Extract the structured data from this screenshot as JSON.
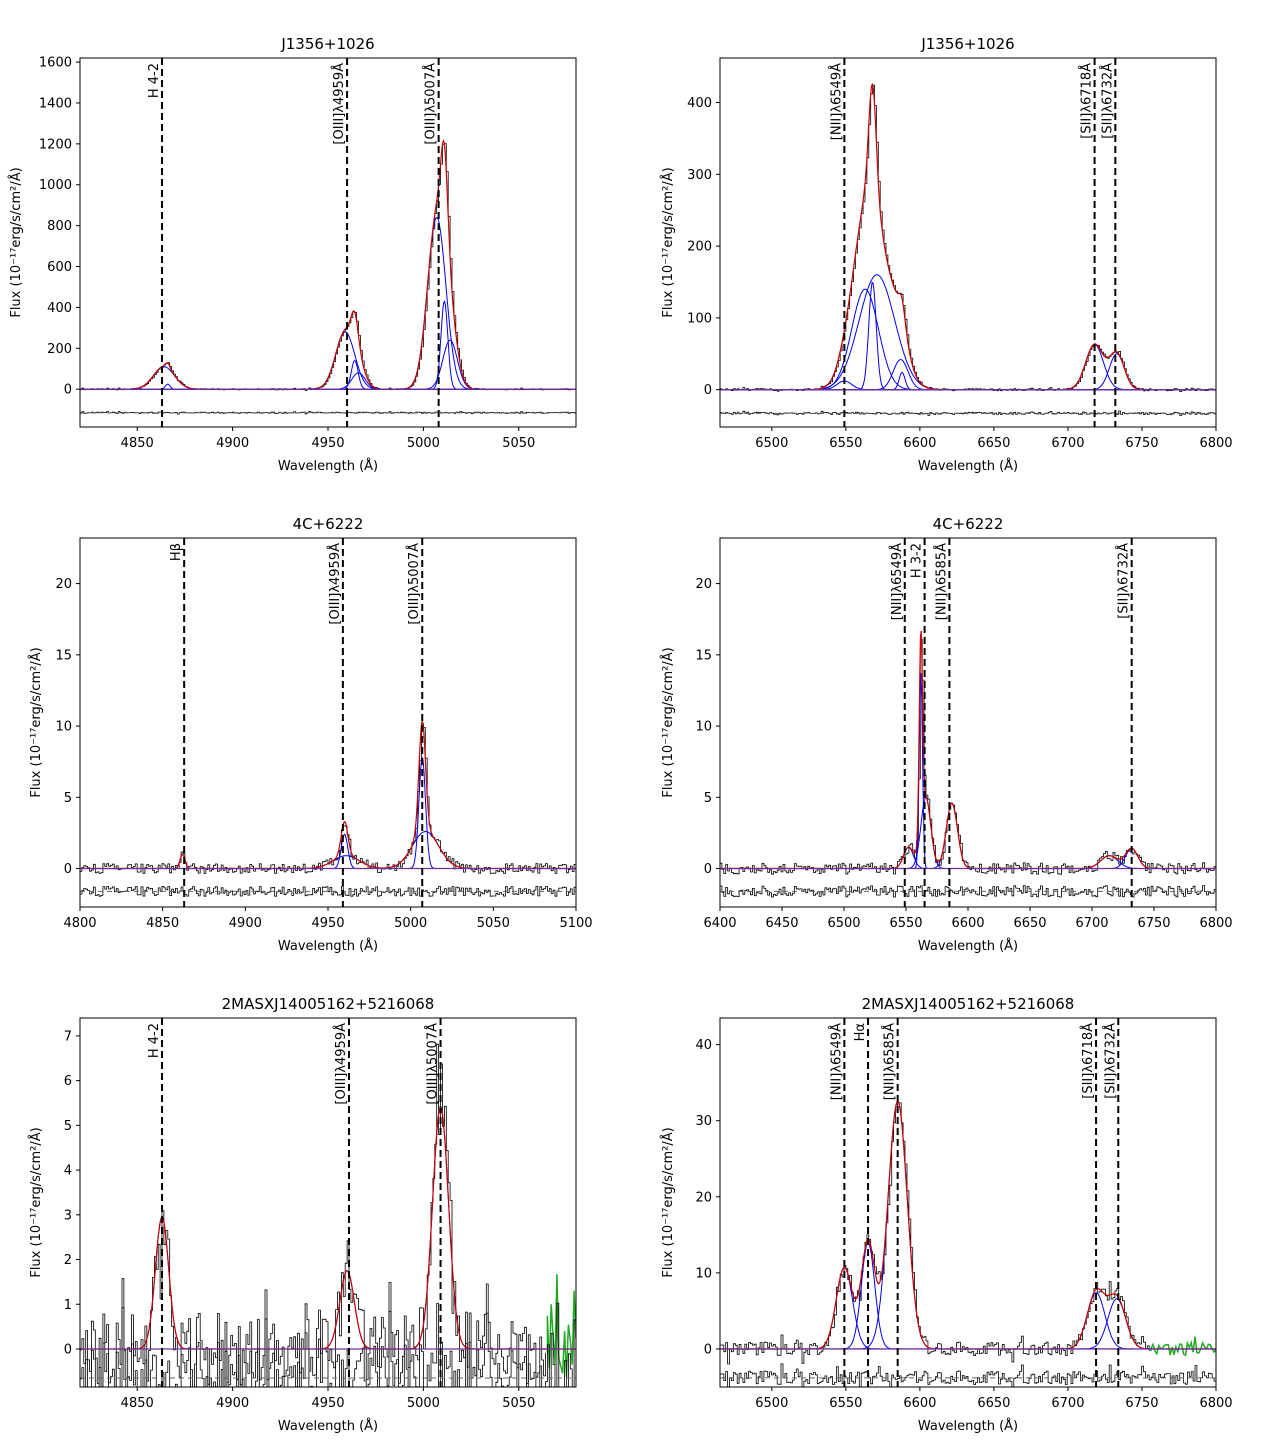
{
  "figure": {
    "description_free": true
  },
  "chart_data": [
    {
      "type": "line",
      "title": "J1356+1026",
      "xlabel": "Wavelength (Å)",
      "ylabel": "Flux (10⁻¹⁷erg/s/cm²/Å)",
      "xlim": [
        4820,
        5080
      ],
      "ylim": [
        -185,
        1620
      ],
      "xticks": [
        4850,
        4900,
        4950,
        5000,
        5050
      ],
      "yticks": [
        0,
        200,
        400,
        600,
        800,
        1000,
        1200,
        1400,
        1600
      ],
      "baseline": 0,
      "residual_offset": -115,
      "noise": 3,
      "marker_lines": [
        {
          "x": 4863,
          "label": "H 4-2"
        },
        {
          "x": 4960,
          "label": "[OIII]λ4959Å"
        },
        {
          "x": 5008,
          "label": "[OIII]λ5007Å"
        }
      ],
      "components": [
        {
          "center": 4864,
          "amplitude": 110,
          "sigma": 5.5
        },
        {
          "center": 4866,
          "amplitude": 25,
          "sigma": 1.2
        },
        {
          "center": 4959,
          "amplitude": 280,
          "sigma": 5.0
        },
        {
          "center": 4964,
          "amplitude": 140,
          "sigma": 1.8
        },
        {
          "center": 4966,
          "amplitude": 80,
          "sigma": 3.5
        },
        {
          "center": 5007,
          "amplitude": 840,
          "sigma": 4.8
        },
        {
          "center": 5011,
          "amplitude": 430,
          "sigma": 1.8
        },
        {
          "center": 5014,
          "amplitude": 240,
          "sigma": 3.8
        }
      ]
    },
    {
      "type": "line",
      "title": "J1356+1026",
      "xlabel": "Wavelength (Å)",
      "ylabel": "Flux (10⁻¹⁷erg/s/cm²/Å)",
      "xlim": [
        6465,
        6800
      ],
      "ylim": [
        -52,
        462
      ],
      "xticks": [
        6500,
        6550,
        6600,
        6650,
        6700,
        6750,
        6800
      ],
      "yticks": [
        0,
        100,
        200,
        300,
        400
      ],
      "baseline": 0,
      "residual_offset": -33,
      "noise": 1.5,
      "marker_lines": [
        {
          "x": 6549,
          "label": "[NII]λ6549Å"
        },
        {
          "x": 6718,
          "label": "[SII]λ6718Å"
        },
        {
          "x": 6732,
          "label": "[SII]λ6732Å"
        }
      ],
      "components": [
        {
          "center": 6549,
          "amplitude": 12,
          "sigma": 5
        },
        {
          "center": 6563,
          "amplitude": 140,
          "sigma": 9
        },
        {
          "center": 6568,
          "amplitude": 150,
          "sigma": 2.5
        },
        {
          "center": 6571,
          "amplitude": 160,
          "sigma": 12
        },
        {
          "center": 6587,
          "amplitude": 42,
          "sigma": 5
        },
        {
          "center": 6588,
          "amplitude": 24,
          "sigma": 2
        },
        {
          "center": 6718,
          "amplitude": 63,
          "sigma": 6
        },
        {
          "center": 6733,
          "amplitude": 50,
          "sigma": 5
        }
      ]
    },
    {
      "type": "line",
      "title": "4C+6222",
      "xlabel": "Wavelength (Å)",
      "ylabel": "Flux (10⁻¹⁷erg/s/cm²/Å)",
      "xlim": [
        4800,
        5100
      ],
      "ylim": [
        -2.7,
        23.2
      ],
      "xticks": [
        4800,
        4850,
        4900,
        4950,
        5000,
        5050,
        5100
      ],
      "yticks": [
        0,
        5,
        10,
        15,
        20
      ],
      "baseline": 0,
      "residual_offset": -1.6,
      "noise": 0.35,
      "marker_lines": [
        {
          "x": 4863,
          "label": "Hβ"
        },
        {
          "x": 4959,
          "label": "[OIII]λ4959Å"
        },
        {
          "x": 5007,
          "label": "[OIII]λ5007Å"
        }
      ],
      "components": [
        {
          "center": 4862,
          "amplitude": 1.0,
          "sigma": 1.5
        },
        {
          "center": 4960,
          "amplitude": 2.4,
          "sigma": 2.0
        },
        {
          "center": 4961,
          "amplitude": 0.9,
          "sigma": 8
        },
        {
          "center": 5007,
          "amplitude": 7.8,
          "sigma": 2.0
        },
        {
          "center": 5009,
          "amplitude": 2.6,
          "sigma": 8
        }
      ]
    },
    {
      "type": "line",
      "title": "4C+6222",
      "xlabel": "Wavelength (Å)",
      "ylabel": "Flux (10⁻¹⁷erg/s/cm²/Å)",
      "xlim": [
        6400,
        6800
      ],
      "ylim": [
        -2.7,
        23.2
      ],
      "xticks": [
        6400,
        6450,
        6500,
        6550,
        6600,
        6650,
        6700,
        6750,
        6800
      ],
      "yticks": [
        0,
        5,
        10,
        15,
        20
      ],
      "baseline": 0,
      "residual_offset": -1.6,
      "noise": 0.4,
      "marker_lines": [
        {
          "x": 6549,
          "label": "[NII]λ6549Å"
        },
        {
          "x": 6565,
          "label": "H 3-2"
        },
        {
          "x": 6585,
          "label": "[NII]λ6585Å"
        },
        {
          "x": 6732,
          "label": "[SII]λ6732Å"
        }
      ],
      "components": [
        {
          "center": 6552,
          "amplitude": 1.5,
          "sigma": 4
        },
        {
          "center": 6562,
          "amplitude": 13.7,
          "sigma": 1.3
        },
        {
          "center": 6566,
          "amplitude": 5.0,
          "sigma": 4
        },
        {
          "center": 6587,
          "amplitude": 4.6,
          "sigma": 4.5
        },
        {
          "center": 6714,
          "amplitude": 0.9,
          "sigma": 7
        },
        {
          "center": 6732,
          "amplitude": 1.4,
          "sigma": 5
        }
      ]
    },
    {
      "type": "line",
      "title": "2MASXJ14005162+5216068",
      "xlabel": "Wavelength (Å)",
      "ylabel": "Flux (10⁻¹⁷erg/s/cm²/Å)",
      "xlim": [
        4820,
        5080
      ],
      "ylim": [
        -0.85,
        7.4
      ],
      "xticks": [
        4850,
        4900,
        4950,
        5000,
        5050
      ],
      "yticks": [
        0,
        1,
        2,
        3,
        4,
        5,
        6,
        7
      ],
      "baseline": 0,
      "residual_offset": -0.65,
      "noise": 0.8,
      "green_range": [
        5065,
        5080
      ],
      "marker_lines": [
        {
          "x": 4863,
          "label": "H 4-2"
        },
        {
          "x": 4961,
          "label": "[OIII]λ4959Å"
        },
        {
          "x": 5009,
          "label": "[OIII]λ5007Å"
        }
      ],
      "components": [
        {
          "center": 4863,
          "amplitude": 2.95,
          "sigma": 3.5
        },
        {
          "center": 4960,
          "amplitude": 1.75,
          "sigma": 3.8
        },
        {
          "center": 5009,
          "amplitude": 5.4,
          "sigma": 4.2
        }
      ]
    },
    {
      "type": "line",
      "title": "2MASXJ14005162+5216068",
      "xlabel": "Wavelength (Å)",
      "ylabel": "Flux (10⁻¹⁷erg/s/cm²/Å)",
      "xlim": [
        6465,
        6800
      ],
      "ylim": [
        -5.0,
        43.5
      ],
      "xticks": [
        6500,
        6550,
        6600,
        6650,
        6700,
        6750,
        6800
      ],
      "yticks": [
        0,
        10,
        20,
        30,
        40
      ],
      "baseline": 0,
      "residual_offset": -3.8,
      "noise": 0.9,
      "green_range": [
        6755,
        6800
      ],
      "marker_lines": [
        {
          "x": 6549,
          "label": "[NII]λ6549Å"
        },
        {
          "x": 6565,
          "label": "Hα"
        },
        {
          "x": 6585,
          "label": "[NII]λ6585Å"
        },
        {
          "x": 6719,
          "label": "[SII]λ6718Å"
        },
        {
          "x": 6734,
          "label": "[SII]λ6732Å"
        }
      ],
      "components": [
        {
          "center": 6549,
          "amplitude": 10.7,
          "sigma": 5.5
        },
        {
          "center": 6565,
          "amplitude": 14.0,
          "sigma": 4.5
        },
        {
          "center": 6585,
          "amplitude": 32.5,
          "sigma": 6.5
        },
        {
          "center": 6719,
          "amplitude": 7.4,
          "sigma": 6
        },
        {
          "center": 6733,
          "amplitude": 6.6,
          "sigma": 6
        }
      ]
    }
  ]
}
